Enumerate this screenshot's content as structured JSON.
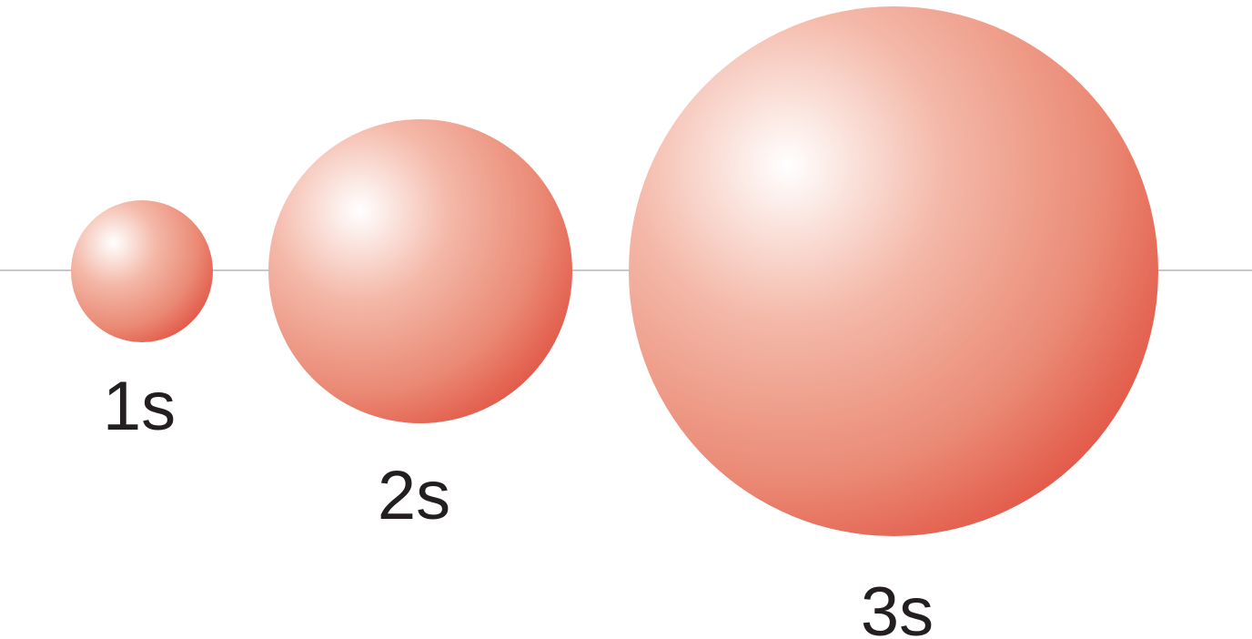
{
  "diagram": {
    "orbitals": [
      {
        "label": "1s"
      },
      {
        "label": "2s"
      },
      {
        "label": "3s"
      }
    ],
    "colors": {
      "sphere_highlight": "#ffffff",
      "sphere_mid": "#ee9d8a",
      "sphere_edge": "#e04a3b",
      "axis_line": "#c8c8c8",
      "label_text": "#231f20"
    }
  }
}
